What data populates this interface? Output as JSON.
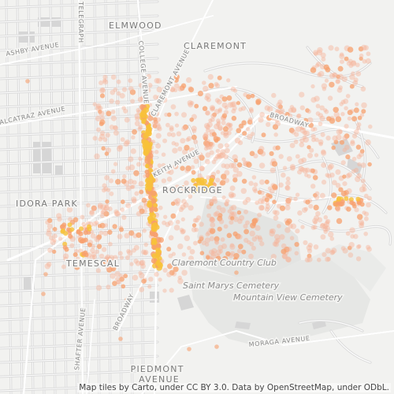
{
  "map": {
    "labels": {
      "elmwood": "ELMWOOD",
      "claremont": "CLAREMONT",
      "idora_park": "IDORA PARK",
      "rockridge": "ROCKRIDGE",
      "temescal": "TEMESCAL",
      "piedmont_avenue": "PIEDMONT\nAVENUE",
      "ashby": "ASHBY AVENUE",
      "alcatraz": "ALCATRAZ AVENUE",
      "college": "COLLEGE AVENUE",
      "claremont_ave": "CLAREMONT AVENUE",
      "broadway_ne": "BROADWAY",
      "broadway_sw": "BROADWAY",
      "keith": "KEITH AVENUE",
      "shafter": "SHAFTER AVENUE",
      "moraga": "MORAGA AVENUE",
      "telegraph": "TELEGRAPH",
      "club": "Claremont Country Club",
      "saint_marys": "Saint Marys Cemetery",
      "mountain_view": "Mountain View Cemetery"
    },
    "colors": {
      "background": "#f2f2f0",
      "road": "#ffffff",
      "road_edge": "#dadada",
      "green_area": "#e4e5e3",
      "block": "#d9d9d9",
      "dot_light": "#f7b49a",
      "dot_mid": "#f7a06e",
      "dot_hot": "#f8c23a"
    },
    "attribution": "Map tiles by Carto, under CC BY 3.0. Data by OpenStreetMap, under ODbL."
  }
}
